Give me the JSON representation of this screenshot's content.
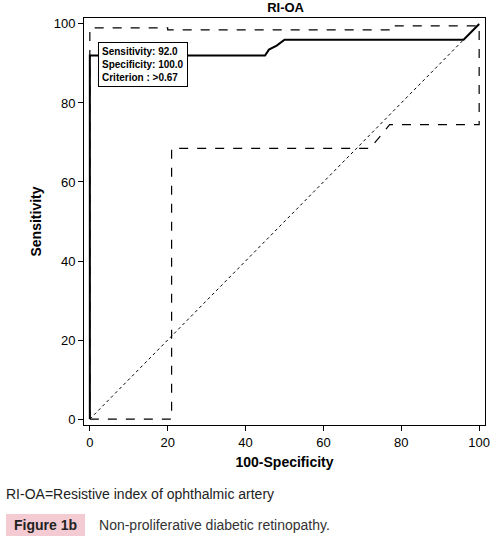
{
  "chart_data": {
    "type": "line",
    "title": "RI-OA",
    "x_label": "100-Specificity",
    "y_label": "Sensitivity",
    "xlim": [
      -1.5,
      101.5
    ],
    "ylim": [
      -1.5,
      101.5
    ],
    "xticks": [
      0,
      20,
      40,
      60,
      80,
      100
    ],
    "yticks": [
      0,
      20,
      40,
      60,
      80,
      100
    ],
    "grid": false,
    "annotations": [
      "Sensitivity: 92.0",
      "Specificity: 100.0",
      "Criterion : >0.67"
    ],
    "series": [
      {
        "color": "#000000",
        "line_style": "solid",
        "x": [
          0,
          0,
          45,
          46,
          48,
          50,
          96,
          100
        ],
        "values": [
          0,
          92,
          92,
          93.5,
          94.5,
          96,
          96,
          100
        ]
      },
      {
        "color": "#000000",
        "line_style": "dashed",
        "x": [
          0,
          0,
          20,
          20,
          78,
          78,
          100
        ],
        "values": [
          0,
          99,
          99,
          98.5,
          98.5,
          99.5,
          99.5
        ]
      },
      {
        "color": "#000000",
        "line_style": "dashed",
        "x": [
          0,
          21,
          21,
          72,
          77,
          100,
          100
        ],
        "values": [
          0,
          0,
          68.5,
          68.5,
          74.5,
          74.5,
          100
        ]
      },
      {
        "color": "#000000",
        "line_style": "dotted",
        "x": [
          0,
          100
        ],
        "values": [
          0,
          100
        ]
      }
    ]
  },
  "caption": "RI-OA=Resistive index of ophthalmic artery",
  "figure_label": "Figure 1b",
  "figure_caption": "Non-proliferative diabetic retinopathy."
}
